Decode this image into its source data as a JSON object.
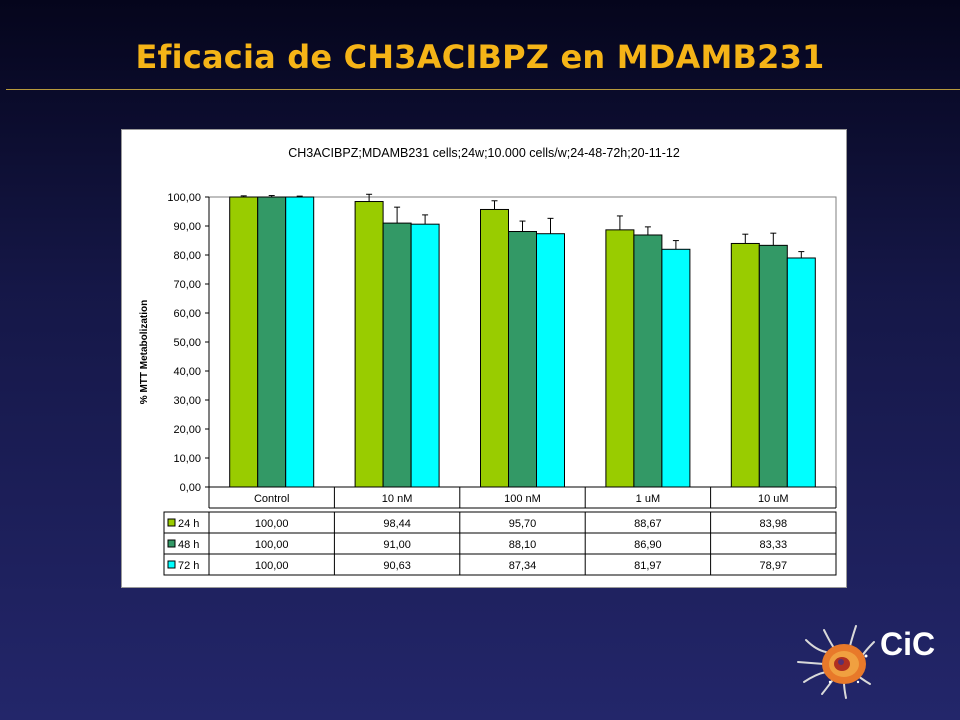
{
  "slide": {
    "title": "Eficacia de CH3ACIBPZ en MDAMB231",
    "logo_text": "CiC"
  },
  "colors": {
    "title": "#f5b417",
    "series_24h": "#99cc00",
    "series_48h": "#339966",
    "series_72h": "#00ffff"
  },
  "icons": [
    "cell-logo-icon"
  ],
  "chart_data": {
    "type": "bar",
    "title": "CH3ACIBPZ;MDAMB231 cells;24w;10.000 cells/w;24-48-72h;20-11-12",
    "ylabel": "% MTT Metabolization",
    "ylim": [
      0,
      100
    ],
    "yticks": [
      "0,00",
      "10,00",
      "20,00",
      "30,00",
      "40,00",
      "50,00",
      "60,00",
      "70,00",
      "80,00",
      "90,00",
      "100,00"
    ],
    "categories": [
      "Control",
      "10 nM",
      "100 nM",
      "1 uM",
      "10 uM"
    ],
    "grid": false,
    "legend": "data-table",
    "series": [
      {
        "name": "24 h",
        "color": "#99cc00",
        "values": [
          100.0,
          98.44,
          95.7,
          88.67,
          83.98
        ],
        "labels": [
          "100,00",
          "98,44",
          "95,70",
          "88,67",
          "83,98"
        ],
        "errors": [
          0.4,
          2.5,
          3.0,
          4.8,
          3.2
        ]
      },
      {
        "name": "48 h",
        "color": "#339966",
        "values": [
          100.0,
          91.0,
          88.1,
          86.9,
          83.33
        ],
        "labels": [
          "100,00",
          "91,00",
          "88,10",
          "86,90",
          "83,33"
        ],
        "errors": [
          0.5,
          5.5,
          3.6,
          2.8,
          4.2
        ]
      },
      {
        "name": "72 h",
        "color": "#00ffff",
        "values": [
          100.0,
          90.63,
          87.34,
          81.97,
          78.97
        ],
        "labels": [
          "100,00",
          "90,63",
          "87,34",
          "81,97",
          "78,97"
        ],
        "errors": [
          0.3,
          3.2,
          5.3,
          3.0,
          2.2
        ]
      }
    ]
  }
}
